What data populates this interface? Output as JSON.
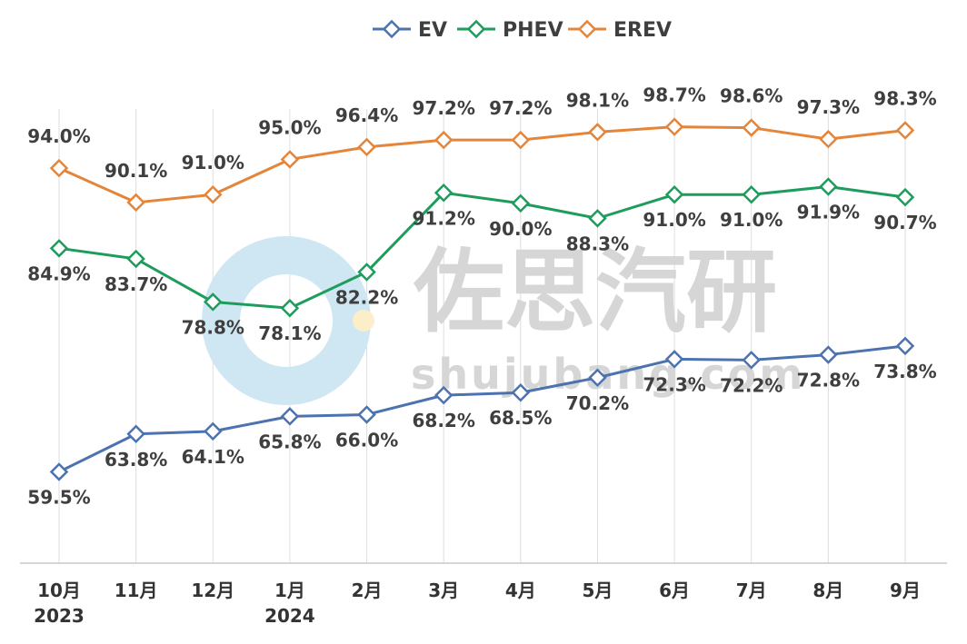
{
  "chart_data": {
    "type": "line",
    "title": "",
    "xlabel": "",
    "ylabel": "",
    "legend_position": "top",
    "grid": "vertical",
    "ylim": [
      20,
      100
    ],
    "categories": [
      [
        "10月",
        "2023"
      ],
      [
        "11月"
      ],
      [
        "12月"
      ],
      [
        "1月",
        "2024"
      ],
      [
        "2月"
      ],
      [
        "3月"
      ],
      [
        "4月"
      ],
      [
        "5月"
      ],
      [
        "6月"
      ],
      [
        "7月"
      ],
      [
        "8月"
      ],
      [
        "9月"
      ]
    ],
    "series": [
      {
        "name": "EV",
        "color": "#4c72b0",
        "values": [
          59.5,
          63.8,
          64.1,
          65.8,
          66.0,
          68.2,
          68.5,
          70.2,
          72.3,
          72.2,
          72.8,
          73.8
        ],
        "labels": [
          "59.5%",
          "63.8%",
          "64.1%",
          "65.8%",
          "66.0%",
          "68.2%",
          "68.5%",
          "70.2%",
          "72.3%",
          "72.2%",
          "72.8%",
          "73.8%"
        ]
      },
      {
        "name": "PHEV",
        "color": "#1e9c5c",
        "values": [
          84.9,
          83.7,
          78.8,
          78.1,
          82.2,
          91.2,
          90.0,
          88.3,
          91.0,
          91.0,
          91.9,
          90.7
        ],
        "labels": [
          "84.9%",
          "83.7%",
          "78.8%",
          "78.1%",
          "82.2%",
          "91.2%",
          "90.0%",
          "88.3%",
          "91.0%",
          "91.0%",
          "91.9%",
          "90.7%"
        ]
      },
      {
        "name": "EREV",
        "color": "#e4853a",
        "values": [
          94.0,
          90.1,
          91.0,
          95.0,
          96.4,
          97.2,
          97.2,
          98.1,
          98.7,
          98.6,
          97.3,
          98.3
        ],
        "labels": [
          "94.0%",
          "90.1%",
          "91.0%",
          "95.0%",
          "96.4%",
          "97.2%",
          "97.2%",
          "98.1%",
          "98.7%",
          "98.6%",
          "97.3%",
          "98.3%"
        ]
      }
    ]
  },
  "watermark": {
    "brand": "佐思汽研",
    "domain": "shujubang.com"
  }
}
